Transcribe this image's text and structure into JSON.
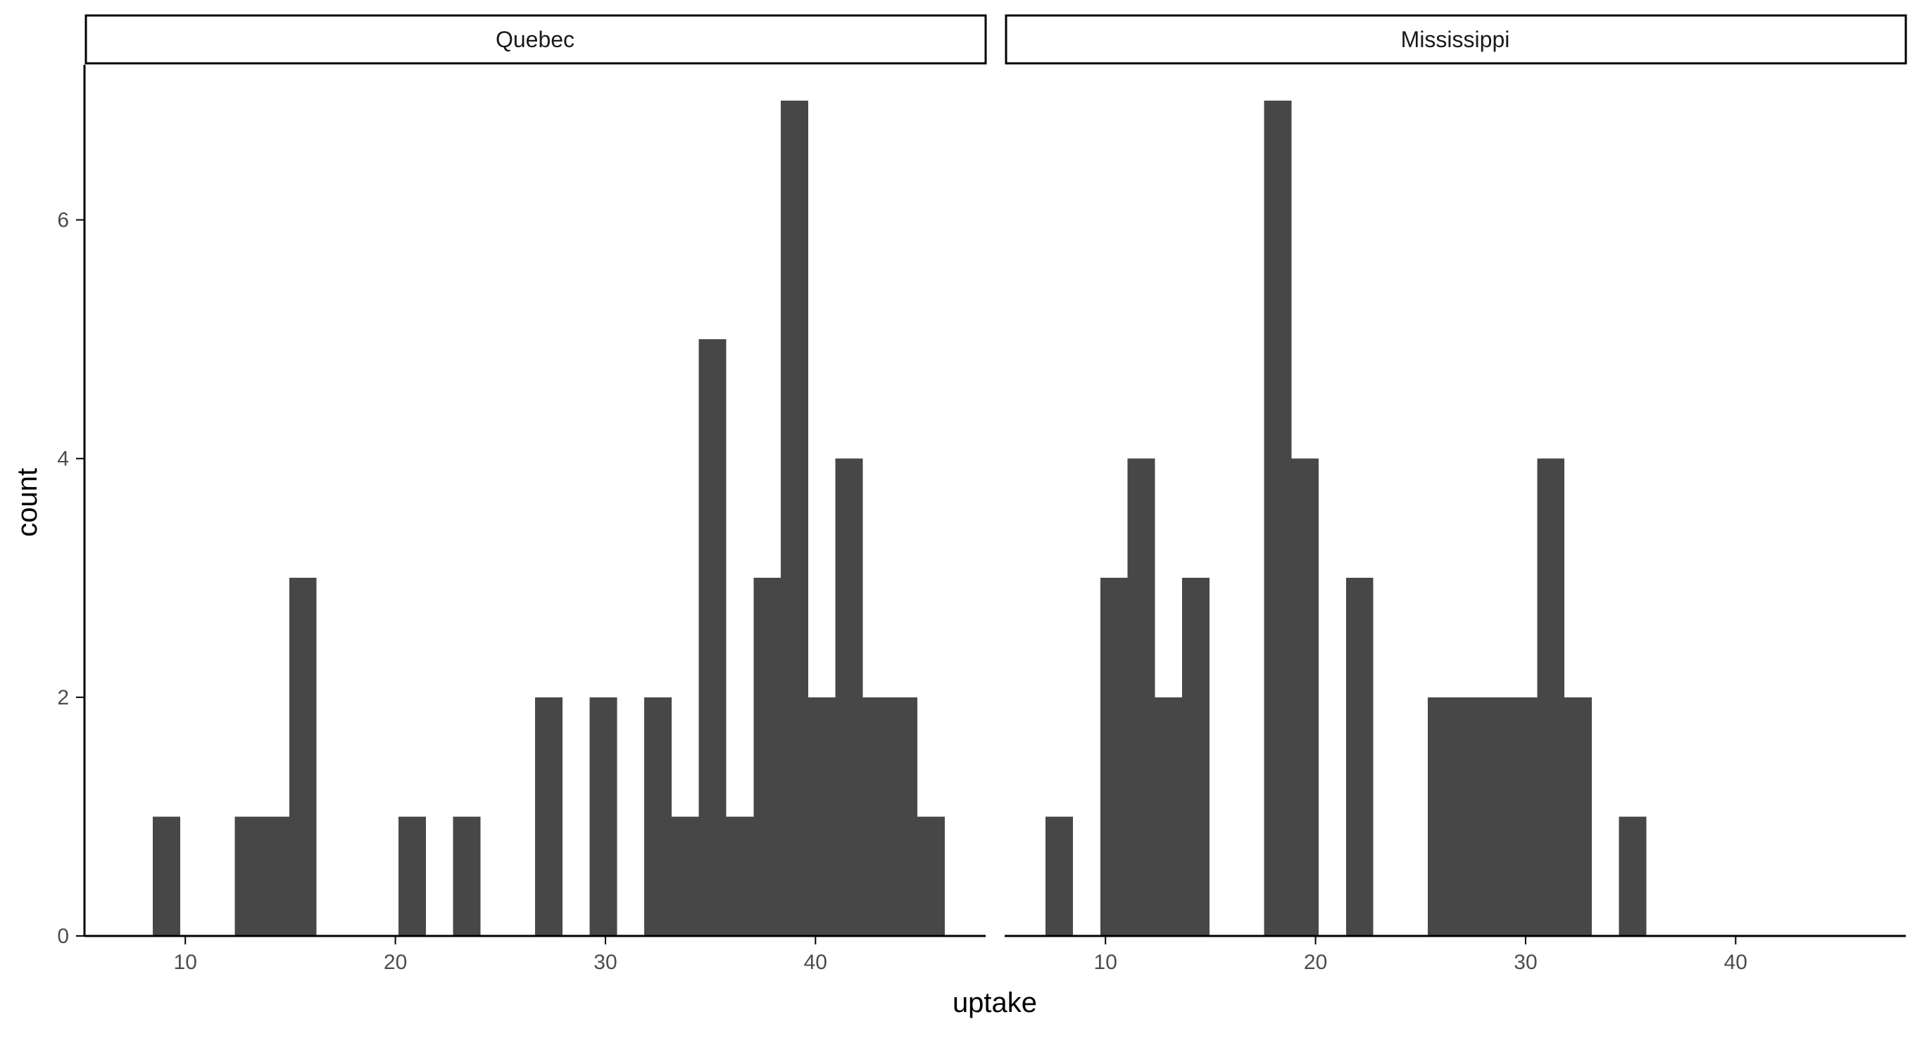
{
  "colors": {
    "bar": "#474747",
    "axis": "#000000",
    "tick_text": "#4d4d4d",
    "strip_border": "#000000",
    "background": "#ffffff"
  },
  "chart_data": {
    "type": "histogram",
    "xlabel": "uptake",
    "ylabel": "count",
    "ylim": [
      0,
      7.3
    ],
    "y_ticks": [
      0,
      2,
      4,
      6
    ],
    "x_ticks": [
      10,
      20,
      30,
      40
    ],
    "bin_width": 1.3,
    "grid": false,
    "legend": "none",
    "facets": [
      {
        "label": "Quebec",
        "xlim": [
          5.2,
          48.1
        ],
        "bins": [
          {
            "x": 9.1,
            "count": 1
          },
          {
            "x": 13.0,
            "count": 1
          },
          {
            "x": 14.3,
            "count": 1
          },
          {
            "x": 15.6,
            "count": 3
          },
          {
            "x": 20.8,
            "count": 1
          },
          {
            "x": 23.4,
            "count": 1
          },
          {
            "x": 27.3,
            "count": 2
          },
          {
            "x": 29.9,
            "count": 2
          },
          {
            "x": 32.5,
            "count": 2
          },
          {
            "x": 33.8,
            "count": 1
          },
          {
            "x": 35.1,
            "count": 5
          },
          {
            "x": 36.4,
            "count": 1
          },
          {
            "x": 37.7,
            "count": 3
          },
          {
            "x": 39.0,
            "count": 7
          },
          {
            "x": 40.3,
            "count": 2
          },
          {
            "x": 41.6,
            "count": 4
          },
          {
            "x": 42.9,
            "count": 2
          },
          {
            "x": 44.2,
            "count": 2
          },
          {
            "x": 45.5,
            "count": 1
          }
        ]
      },
      {
        "label": "Mississippi",
        "xlim": [
          5.2,
          48.1
        ],
        "bins": [
          {
            "x": 7.8,
            "count": 1
          },
          {
            "x": 10.4,
            "count": 3
          },
          {
            "x": 11.7,
            "count": 4
          },
          {
            "x": 13.0,
            "count": 2
          },
          {
            "x": 14.3,
            "count": 3
          },
          {
            "x": 18.2,
            "count": 7
          },
          {
            "x": 19.5,
            "count": 4
          },
          {
            "x": 22.1,
            "count": 3
          },
          {
            "x": 26.0,
            "count": 2
          },
          {
            "x": 27.3,
            "count": 2
          },
          {
            "x": 28.6,
            "count": 2
          },
          {
            "x": 29.9,
            "count": 2
          },
          {
            "x": 31.2,
            "count": 4
          },
          {
            "x": 32.5,
            "count": 2
          },
          {
            "x": 35.1,
            "count": 1
          }
        ]
      }
    ]
  }
}
